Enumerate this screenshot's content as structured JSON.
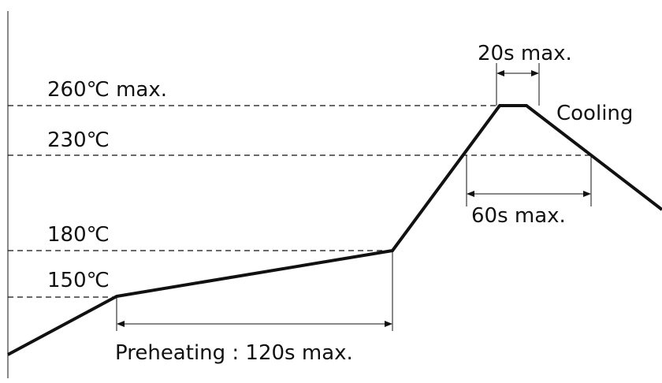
{
  "labels": {
    "temp_260": "260℃ max.",
    "temp_230": "230℃",
    "temp_180": "180℃",
    "temp_150": "150℃",
    "peak_time": "20s max.",
    "above_230_time": "60s max.",
    "preheating": "Preheating : 120s max.",
    "cooling": "Cooling"
  }
}
